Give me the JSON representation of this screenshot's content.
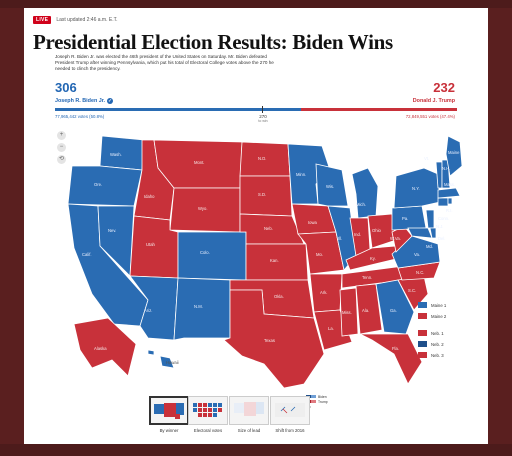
{
  "header": {
    "live_badge": "LIVE",
    "updated": "Last updated 2:46 a.m. E.T.",
    "title": "Presidential Election Results: Biden Wins",
    "summary": "Joseph R. Biden Jr. was elected the 46th president of the United States on Saturday. Mr. Biden defeated President Trump after winning Pennsylvania, which put his total of Electoral College votes above the 270 he needed to clinch the presidency."
  },
  "tally": {
    "biden_ev": "306",
    "trump_ev": "232",
    "biden_name": "Joseph R. Biden Jr.",
    "trump_name": "Donald J. Trump",
    "biden_votes": "77,965,442 votes (50.8%)",
    "trump_votes": "72,849,551 votes (47.4%)",
    "threshold": "270",
    "threshold_sub": "to win",
    "biden_color": "#2266b3",
    "trump_color": "#c8313a"
  },
  "zoom": {
    "in": "+",
    "out": "−",
    "reset": "⟲"
  },
  "states": {
    "wash": "Wash.",
    "ore": "Ore.",
    "calif": "Calif.",
    "nev": "Nev.",
    "idaho": "Idaho",
    "mont": "Mont.",
    "wyo": "Wyo.",
    "utah": "Utah",
    "colo": "Colo.",
    "ariz": "Ariz.",
    "nm": "N.M.",
    "nd": "N.D.",
    "sd": "S.D.",
    "neb": "Neb.",
    "kan": "Kan.",
    "okla": "Okla.",
    "texas": "Texas",
    "minn": "Minn.",
    "iowa": "Iowa",
    "mo": "Mo.",
    "ark": "Ark.",
    "la": "La.",
    "wis": "Wis.",
    "ill": "Ill.",
    "mich": "Mich.",
    "ind": "Ind.",
    "ohio": "Ohio",
    "ky": "Ky.",
    "tenn": "Tenn.",
    "miss": "Miss.",
    "ala": "Ala.",
    "ga": "Ga.",
    "fla": "Fla.",
    "sc": "S.C.",
    "nc": "N.C.",
    "va": "Va.",
    "wva": "W.Va.",
    "pa": "Pa.",
    "ny": "N.Y.",
    "vt": "Vt.",
    "maine": "Maine",
    "nh": "N.H.",
    "mass": "Mass.",
    "ri": "R.I.",
    "conn": "Conn.",
    "nj": "N.J.",
    "del": "Del.",
    "md": "Md.",
    "alaska": "Alaska",
    "hawaii": "Hawaii"
  },
  "legend": {
    "maine1": "Maine 1",
    "maine2": "Maine 2",
    "neb1": "Neb. 1",
    "neb2": "Neb. 2",
    "neb3": "Neb. 3"
  },
  "key": {
    "biden": "Biden",
    "trump": "Trump",
    "flip": "Flip"
  },
  "views": {
    "by_winner": "By winner",
    "electoral": "Electoral votes",
    "size_lead": "Size of lead",
    "shift": "Shift from 2016"
  }
}
